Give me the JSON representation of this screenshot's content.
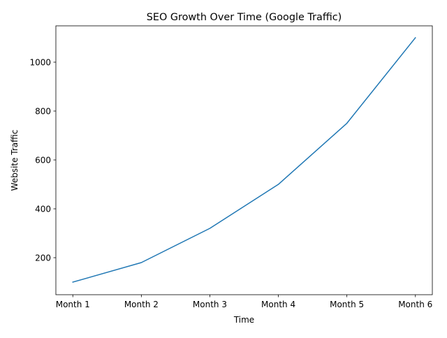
{
  "chart_data": {
    "type": "line",
    "title": "SEO Growth Over Time (Google Traffic)",
    "xlabel": "Time",
    "ylabel": "Website Traffic",
    "categories": [
      "Month 1",
      "Month 2",
      "Month 3",
      "Month 4",
      "Month 5",
      "Month 6"
    ],
    "series": [
      {
        "name": "Website Traffic",
        "values": [
          100,
          180,
          320,
          500,
          750,
          1100
        ],
        "color": "#1f77b4"
      }
    ],
    "yticks": [
      200,
      400,
      600,
      800,
      1000
    ],
    "ytick_labels": [
      "200",
      "400",
      "600",
      "800",
      "1000"
    ],
    "ylim": [
      48.6,
      1148.6
    ],
    "grid": false,
    "legend": "none"
  }
}
